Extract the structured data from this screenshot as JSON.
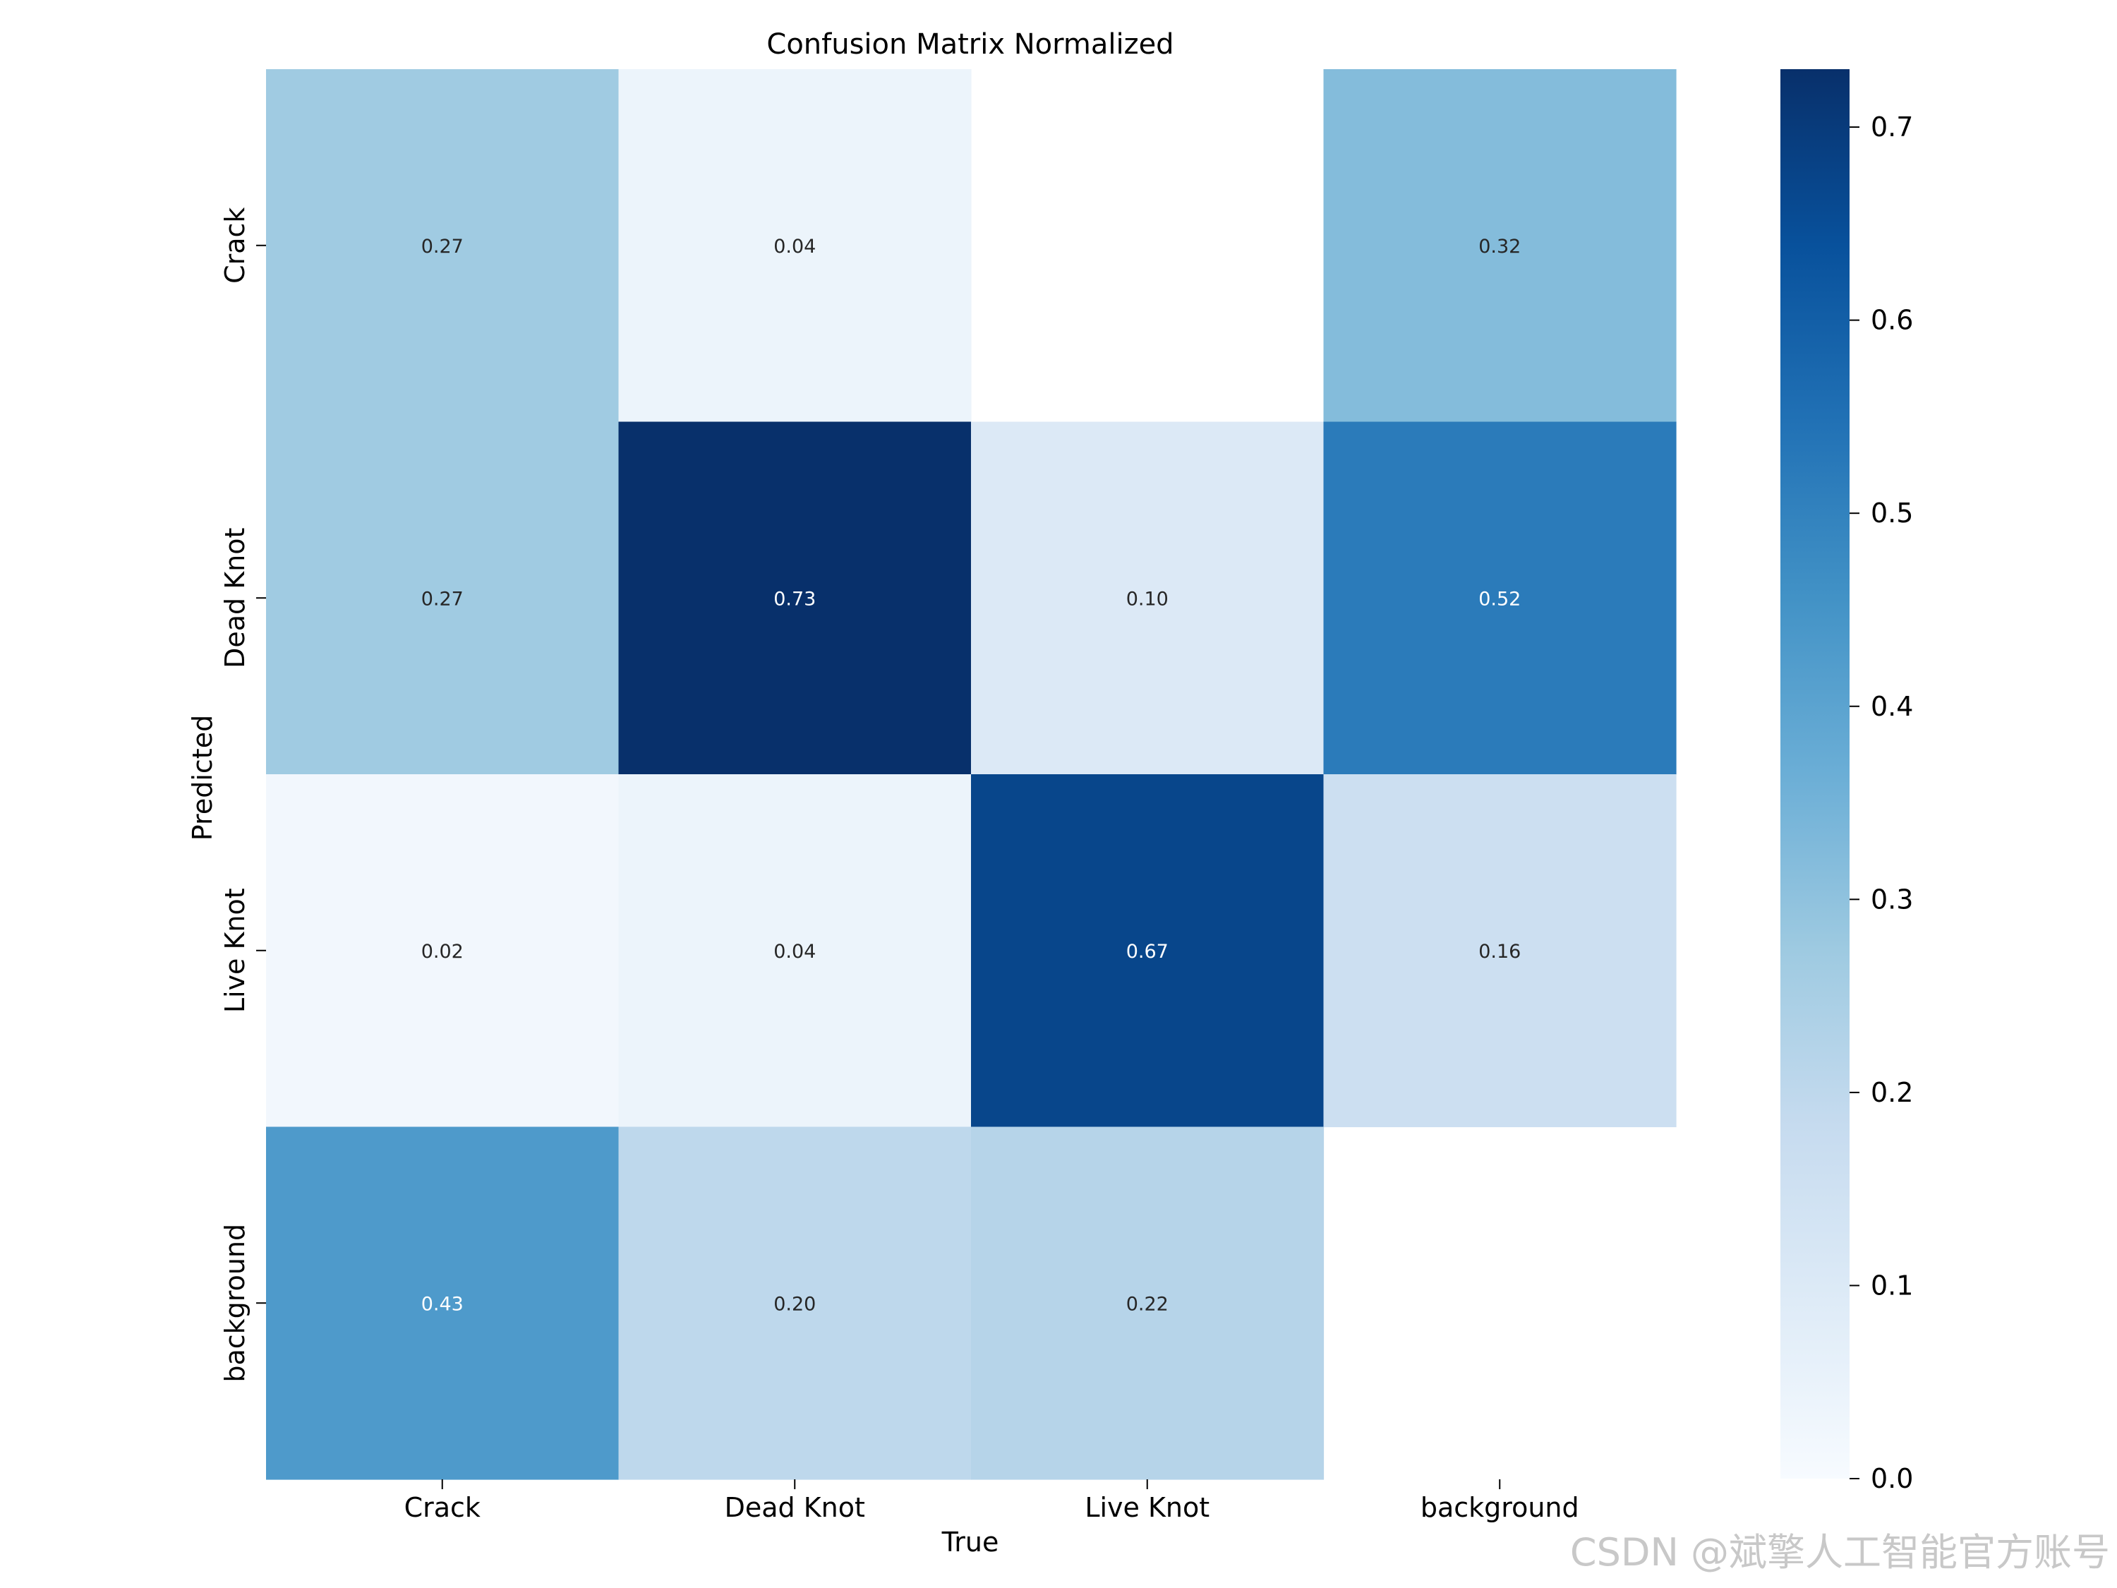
{
  "chart_data": {
    "type": "heatmap",
    "title": "Confusion Matrix Normalized",
    "xlabel": "True",
    "ylabel": "Predicted",
    "x_categories": [
      "Crack",
      "Dead Knot",
      "Live Knot",
      "background"
    ],
    "y_categories": [
      "Crack",
      "Dead Knot",
      "Live Knot",
      "background"
    ],
    "values": [
      [
        0.27,
        0.04,
        null,
        0.32
      ],
      [
        0.27,
        0.73,
        0.1,
        0.52
      ],
      [
        0.02,
        0.04,
        0.67,
        0.16
      ],
      [
        0.43,
        0.2,
        0.22,
        null
      ]
    ],
    "value_labels": [
      [
        "0.27",
        "0.04",
        "",
        "0.32"
      ],
      [
        "0.27",
        "0.73",
        "0.10",
        "0.52"
      ],
      [
        "0.02",
        "0.04",
        "0.67",
        "0.16"
      ],
      [
        "0.43",
        "0.20",
        "0.22",
        ""
      ]
    ],
    "colormap": "Blues",
    "colorbar": {
      "range": [
        0.0,
        0.73
      ],
      "ticks": [
        0.0,
        0.1,
        0.2,
        0.3,
        0.4,
        0.5,
        0.6,
        0.7
      ],
      "tick_labels": [
        "0.0",
        "0.1",
        "0.2",
        "0.3",
        "0.4",
        "0.5",
        "0.6",
        "0.7"
      ]
    },
    "grid": false
  },
  "watermark": "CSDN @斌擎人工智能官方账号"
}
